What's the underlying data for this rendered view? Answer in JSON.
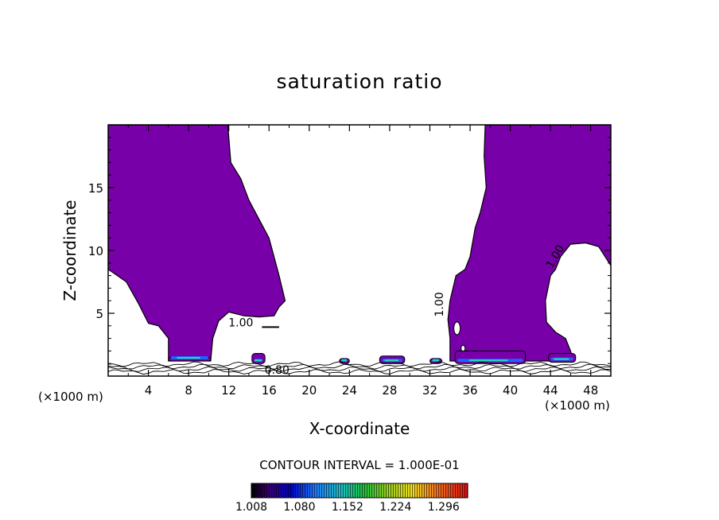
{
  "chart_data": {
    "type": "contour",
    "title": "saturation ratio",
    "xlabel": "X-coordinate",
    "ylabel": "Z-coordinate",
    "x_unit_left": "(×1000 m)",
    "x_unit_right": "(×1000 m)",
    "xlim": [
      0,
      50
    ],
    "ylim": [
      0,
      20
    ],
    "x_ticks": [
      4,
      8,
      12,
      16,
      20,
      24,
      28,
      32,
      36,
      40,
      44,
      48
    ],
    "y_ticks": [
      5,
      10,
      15
    ],
    "contour_labels": [
      {
        "text": "1.00",
        "x": 13.2,
        "z": 4.2,
        "rotate": 0
      },
      {
        "text": "1.00",
        "x": 33.0,
        "z": 5.7,
        "rotate": -90
      },
      {
        "text": "1.00",
        "x": 44.5,
        "z": 9.5,
        "rotate": -60
      },
      {
        "text": "0.80",
        "x": 16.8,
        "z": 0.45,
        "rotate": 0
      }
    ],
    "contour_interval_text": "CONTOUR INTERVAL = 1.000E-01",
    "colorbar": {
      "labels": [
        "1.008",
        "1.080",
        "1.152",
        "1.224",
        "1.296"
      ],
      "min": 1.008,
      "max": 1.332
    },
    "colors": {
      "fill": "#7800a8",
      "low_level_bright": "#20e0b0",
      "low_level_mid": "#2060ff"
    },
    "left_region": [
      [
        0,
        20
      ],
      [
        11.9,
        20
      ],
      [
        12.2,
        17
      ],
      [
        13.2,
        15.7
      ],
      [
        14,
        14
      ],
      [
        16,
        11
      ],
      [
        17,
        8
      ],
      [
        17.6,
        6
      ],
      [
        17,
        5.5
      ],
      [
        16.5,
        4.8
      ],
      [
        15,
        4.7
      ],
      [
        13.5,
        4.8
      ],
      [
        12,
        5.1
      ],
      [
        11,
        4.4
      ],
      [
        10.4,
        3.0
      ],
      [
        10.2,
        1.2
      ],
      [
        6.0,
        1.2
      ],
      [
        6,
        3
      ],
      [
        5,
        4
      ],
      [
        4,
        4.2
      ],
      [
        3,
        5.8
      ],
      [
        1.8,
        7.5
      ],
      [
        0,
        8.5
      ]
    ],
    "right_region": [
      [
        37.5,
        20
      ],
      [
        50,
        20
      ],
      [
        50,
        8.8
      ],
      [
        48.8,
        10.3
      ],
      [
        47.5,
        10.6
      ],
      [
        46,
        10.5
      ],
      [
        45,
        9.5
      ],
      [
        44.5,
        8.5
      ],
      [
        44,
        8
      ],
      [
        43.5,
        6.0
      ],
      [
        43.6,
        4.3
      ],
      [
        44.5,
        3.5
      ],
      [
        45.5,
        3.0
      ],
      [
        46,
        2.0
      ],
      [
        46.3,
        1.2
      ],
      [
        34,
        1.2
      ],
      [
        34,
        3
      ],
      [
        33.8,
        4.5
      ],
      [
        34,
        6
      ],
      [
        34.6,
        8.0
      ],
      [
        35.5,
        8.5
      ],
      [
        36,
        9.5
      ],
      [
        36.5,
        11.8
      ],
      [
        37,
        13
      ],
      [
        37.6,
        15
      ],
      [
        37.4,
        17.5
      ]
    ],
    "low_level_patches": [
      {
        "x": [
          6.0,
          10.2
        ],
        "z": [
          1.2,
          1.5
        ]
      },
      {
        "x": [
          14.3,
          15.6
        ],
        "z": [
          1.0,
          1.8
        ]
      },
      {
        "x": [
          23.0,
          24.0
        ],
        "z": [
          1.0,
          1.4
        ]
      },
      {
        "x": [
          27.0,
          29.5
        ],
        "z": [
          1.0,
          1.6
        ]
      },
      {
        "x": [
          32.0,
          33.2
        ],
        "z": [
          1.0,
          1.4
        ]
      },
      {
        "x": [
          34.5,
          41.5
        ],
        "z": [
          1.0,
          2.0
        ]
      },
      {
        "x": [
          43.8,
          46.5
        ],
        "z": [
          1.1,
          1.8
        ]
      }
    ]
  }
}
